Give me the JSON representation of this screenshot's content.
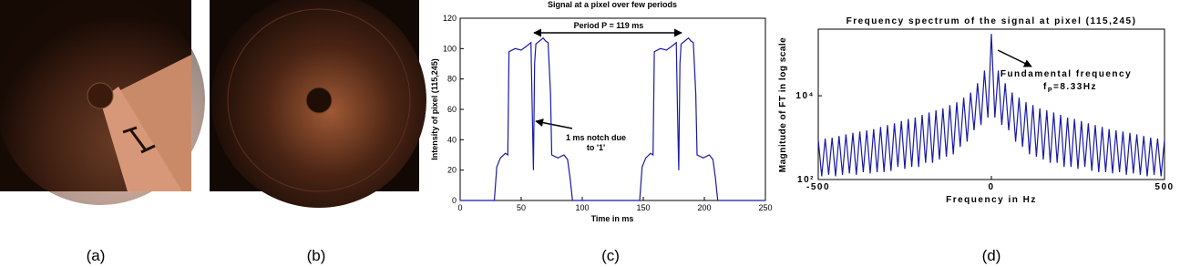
{
  "captions": [
    "(a)",
    "(b)",
    "(c)",
    "(d)"
  ],
  "chart_data": [
    {
      "type": "line",
      "title": "Signal at a pixel over few periods",
      "xlabel": "Time in ms",
      "ylabel": "Intensity of pixel (115,245)",
      "annotations": [
        "Period P = 119 ms",
        "1 ms notch due",
        "to '1'"
      ],
      "color": "#1a1aa6",
      "ylog": false,
      "xlim": [
        0,
        250
      ],
      "xticks": [
        0,
        50,
        100,
        150,
        200,
        250
      ],
      "ylim": [
        0,
        120
      ],
      "yticks": [
        0,
        20,
        40,
        60,
        80,
        100,
        120
      ],
      "x": [
        0,
        28,
        30,
        33,
        37,
        39,
        40,
        45,
        50,
        55,
        58,
        59,
        60,
        61,
        62,
        65,
        68,
        70,
        72,
        74,
        75,
        80,
        85,
        88,
        90,
        92,
        120,
        147,
        149,
        152,
        156,
        158,
        159,
        164,
        169,
        174,
        177,
        178,
        179,
        180,
        181,
        184,
        187,
        189,
        191,
        193,
        194,
        199,
        204,
        207,
        209,
        211,
        250
      ],
      "values": [
        0,
        0,
        22,
        28,
        31,
        30,
        98,
        100,
        99,
        102,
        104,
        60,
        20,
        90,
        103,
        105,
        107,
        105,
        104,
        70,
        30,
        28,
        30,
        27,
        15,
        0,
        0,
        0,
        22,
        28,
        31,
        30,
        98,
        100,
        99,
        102,
        104,
        60,
        20,
        90,
        103,
        105,
        107,
        105,
        104,
        70,
        30,
        28,
        30,
        27,
        15,
        0,
        0
      ]
    },
    {
      "type": "line",
      "title": "Frequency spectrum of the signal at pixel (115,245)",
      "xlabel": "Frequency in Hz",
      "ylabel": "Magnitude of FT in log scale",
      "annotations": [
        "Fundamental frequency",
        "f",
        "P",
        "=8.33Hz"
      ],
      "color": "#1a1aa6",
      "ylog": true,
      "xlim": [
        -500,
        500
      ],
      "xticks": [
        -500,
        0,
        500
      ],
      "ylim": [
        100,
        390000
      ],
      "yticks": [
        {
          "value": 100,
          "label": "10²"
        },
        {
          "value": 10000,
          "label": "10⁴"
        }
      ],
      "x": [
        -500,
        -490,
        -480,
        -470,
        -460,
        -450,
        -440,
        -430,
        -420,
        -410,
        -400,
        -390,
        -380,
        -370,
        -360,
        -350,
        -340,
        -330,
        -320,
        -310,
        -300,
        -290,
        -280,
        -270,
        -260,
        -250,
        -240,
        -230,
        -220,
        -210,
        -200,
        -190,
        -180,
        -170,
        -160,
        -150,
        -140,
        -130,
        -120,
        -110,
        -100,
        -90,
        -80,
        -70,
        -60,
        -50,
        -40,
        -30,
        -20,
        -10,
        0,
        10,
        20,
        30,
        40,
        50,
        60,
        70,
        80,
        90,
        100,
        110,
        120,
        130,
        140,
        150,
        160,
        170,
        180,
        190,
        200,
        210,
        220,
        230,
        240,
        250,
        260,
        270,
        280,
        290,
        300,
        310,
        320,
        330,
        340,
        350,
        360,
        370,
        380,
        390,
        400,
        410,
        420,
        430,
        440,
        450,
        460,
        470,
        480,
        490,
        500
      ],
      "values": [
        900,
        120,
        950,
        130,
        1000,
        120,
        1100,
        130,
        1200,
        140,
        1300,
        130,
        1400,
        150,
        1500,
        140,
        1600,
        150,
        1800,
        150,
        2000,
        160,
        2200,
        200,
        2500,
        180,
        2800,
        200,
        3000,
        200,
        3500,
        250,
        4000,
        250,
        4500,
        300,
        5000,
        350,
        6000,
        400,
        7000,
        600,
        9000,
        800,
        12000,
        1500,
        20000,
        2000,
        40000,
        3000,
        300000,
        3000,
        40000,
        2000,
        20000,
        1500,
        12000,
        800,
        9000,
        600,
        7000,
        400,
        6000,
        350,
        5000,
        300,
        4500,
        250,
        4000,
        250,
        3500,
        200,
        3000,
        200,
        2800,
        180,
        2500,
        200,
        2200,
        160,
        2000,
        150,
        1800,
        150,
        1600,
        140,
        1500,
        150,
        1400,
        130,
        1300,
        140,
        1200,
        130,
        1100,
        120,
        1000,
        130,
        950,
        120,
        900
      ]
    }
  ]
}
